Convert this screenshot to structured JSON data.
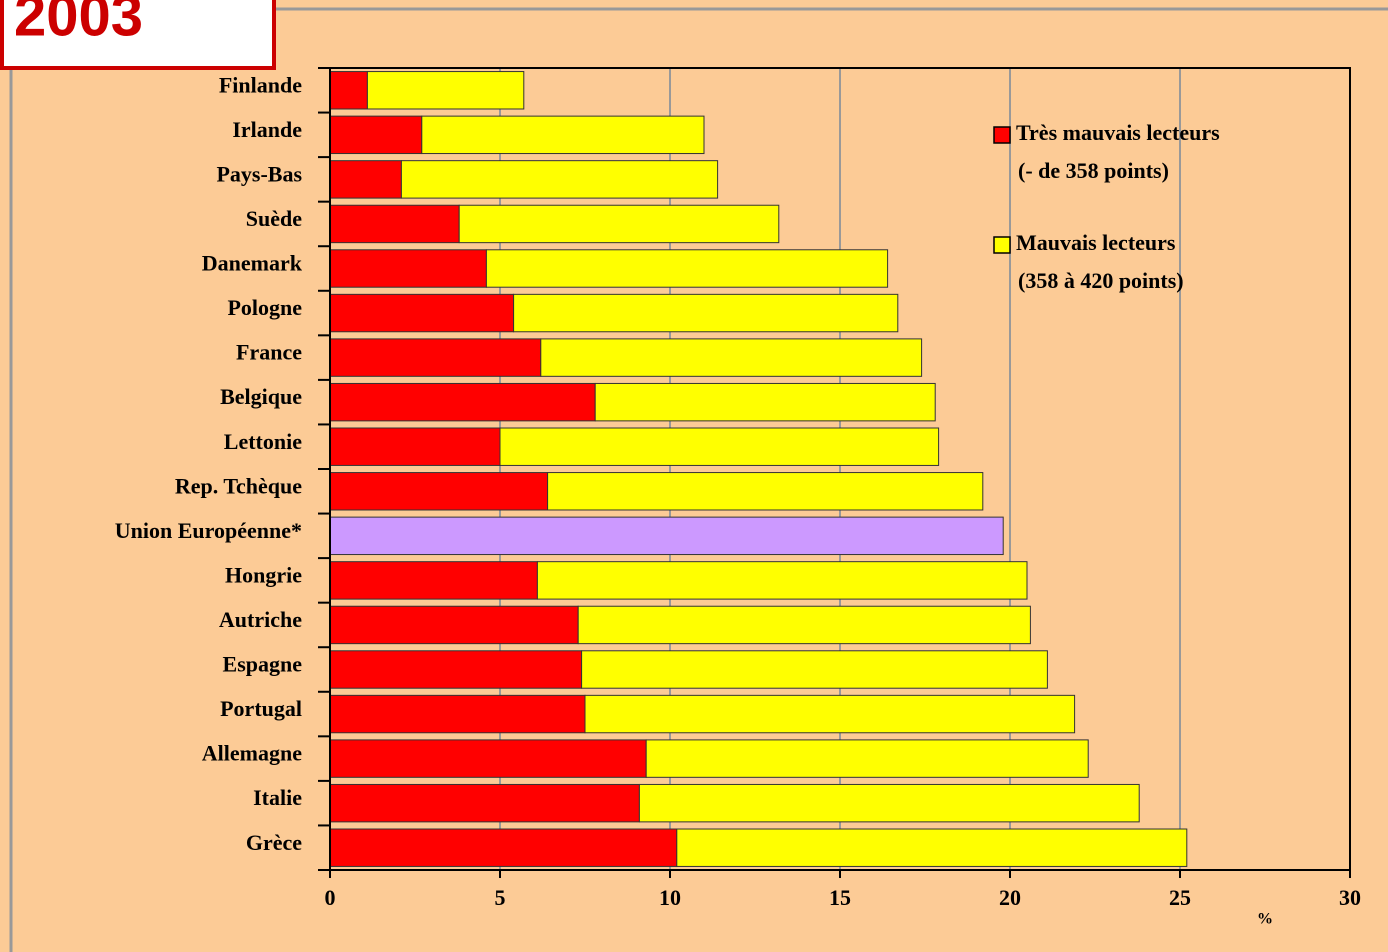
{
  "header": {
    "title": "2003"
  },
  "chart_data": {
    "type": "stacked-barh",
    "categories": [
      "Finlande",
      "Irlande",
      "Pays-Bas",
      "Suède",
      "Danemark",
      "Pologne",
      "France",
      "Belgique",
      "Lettonie",
      "Rep. Tchèque",
      "Union Européenne*",
      "Hongrie",
      "Autriche",
      "Espagne",
      "Portugal",
      "Allemagne",
      "Italie",
      "Grèce"
    ],
    "series": [
      {
        "name": "Très mauvais lecteurs",
        "note": "(- de 358 points)",
        "color": "#ff0000",
        "values": [
          1.1,
          2.7,
          2.1,
          3.8,
          4.6,
          5.4,
          6.2,
          7.8,
          5.0,
          6.4,
          null,
          6.1,
          7.3,
          7.4,
          7.5,
          9.3,
          9.1,
          10.2
        ]
      },
      {
        "name": "Mauvais lecteurs",
        "note": "(358 à 420 points)",
        "color": "#ffff00",
        "values": [
          4.6,
          8.3,
          9.3,
          9.4,
          11.8,
          11.3,
          11.2,
          10.0,
          12.9,
          12.8,
          null,
          14.4,
          13.3,
          13.7,
          14.4,
          13.0,
          14.7,
          15.0
        ]
      },
      {
        "color": "#cc99ff",
        "values": [
          null,
          null,
          null,
          null,
          null,
          null,
          null,
          null,
          null,
          null,
          19.8,
          null,
          null,
          null,
          null,
          null,
          null,
          null
        ]
      }
    ],
    "x_label": "%",
    "xlim": [
      0,
      30
    ],
    "xticks": [
      0,
      5,
      10,
      15,
      20,
      25,
      30
    ],
    "grid": true
  }
}
